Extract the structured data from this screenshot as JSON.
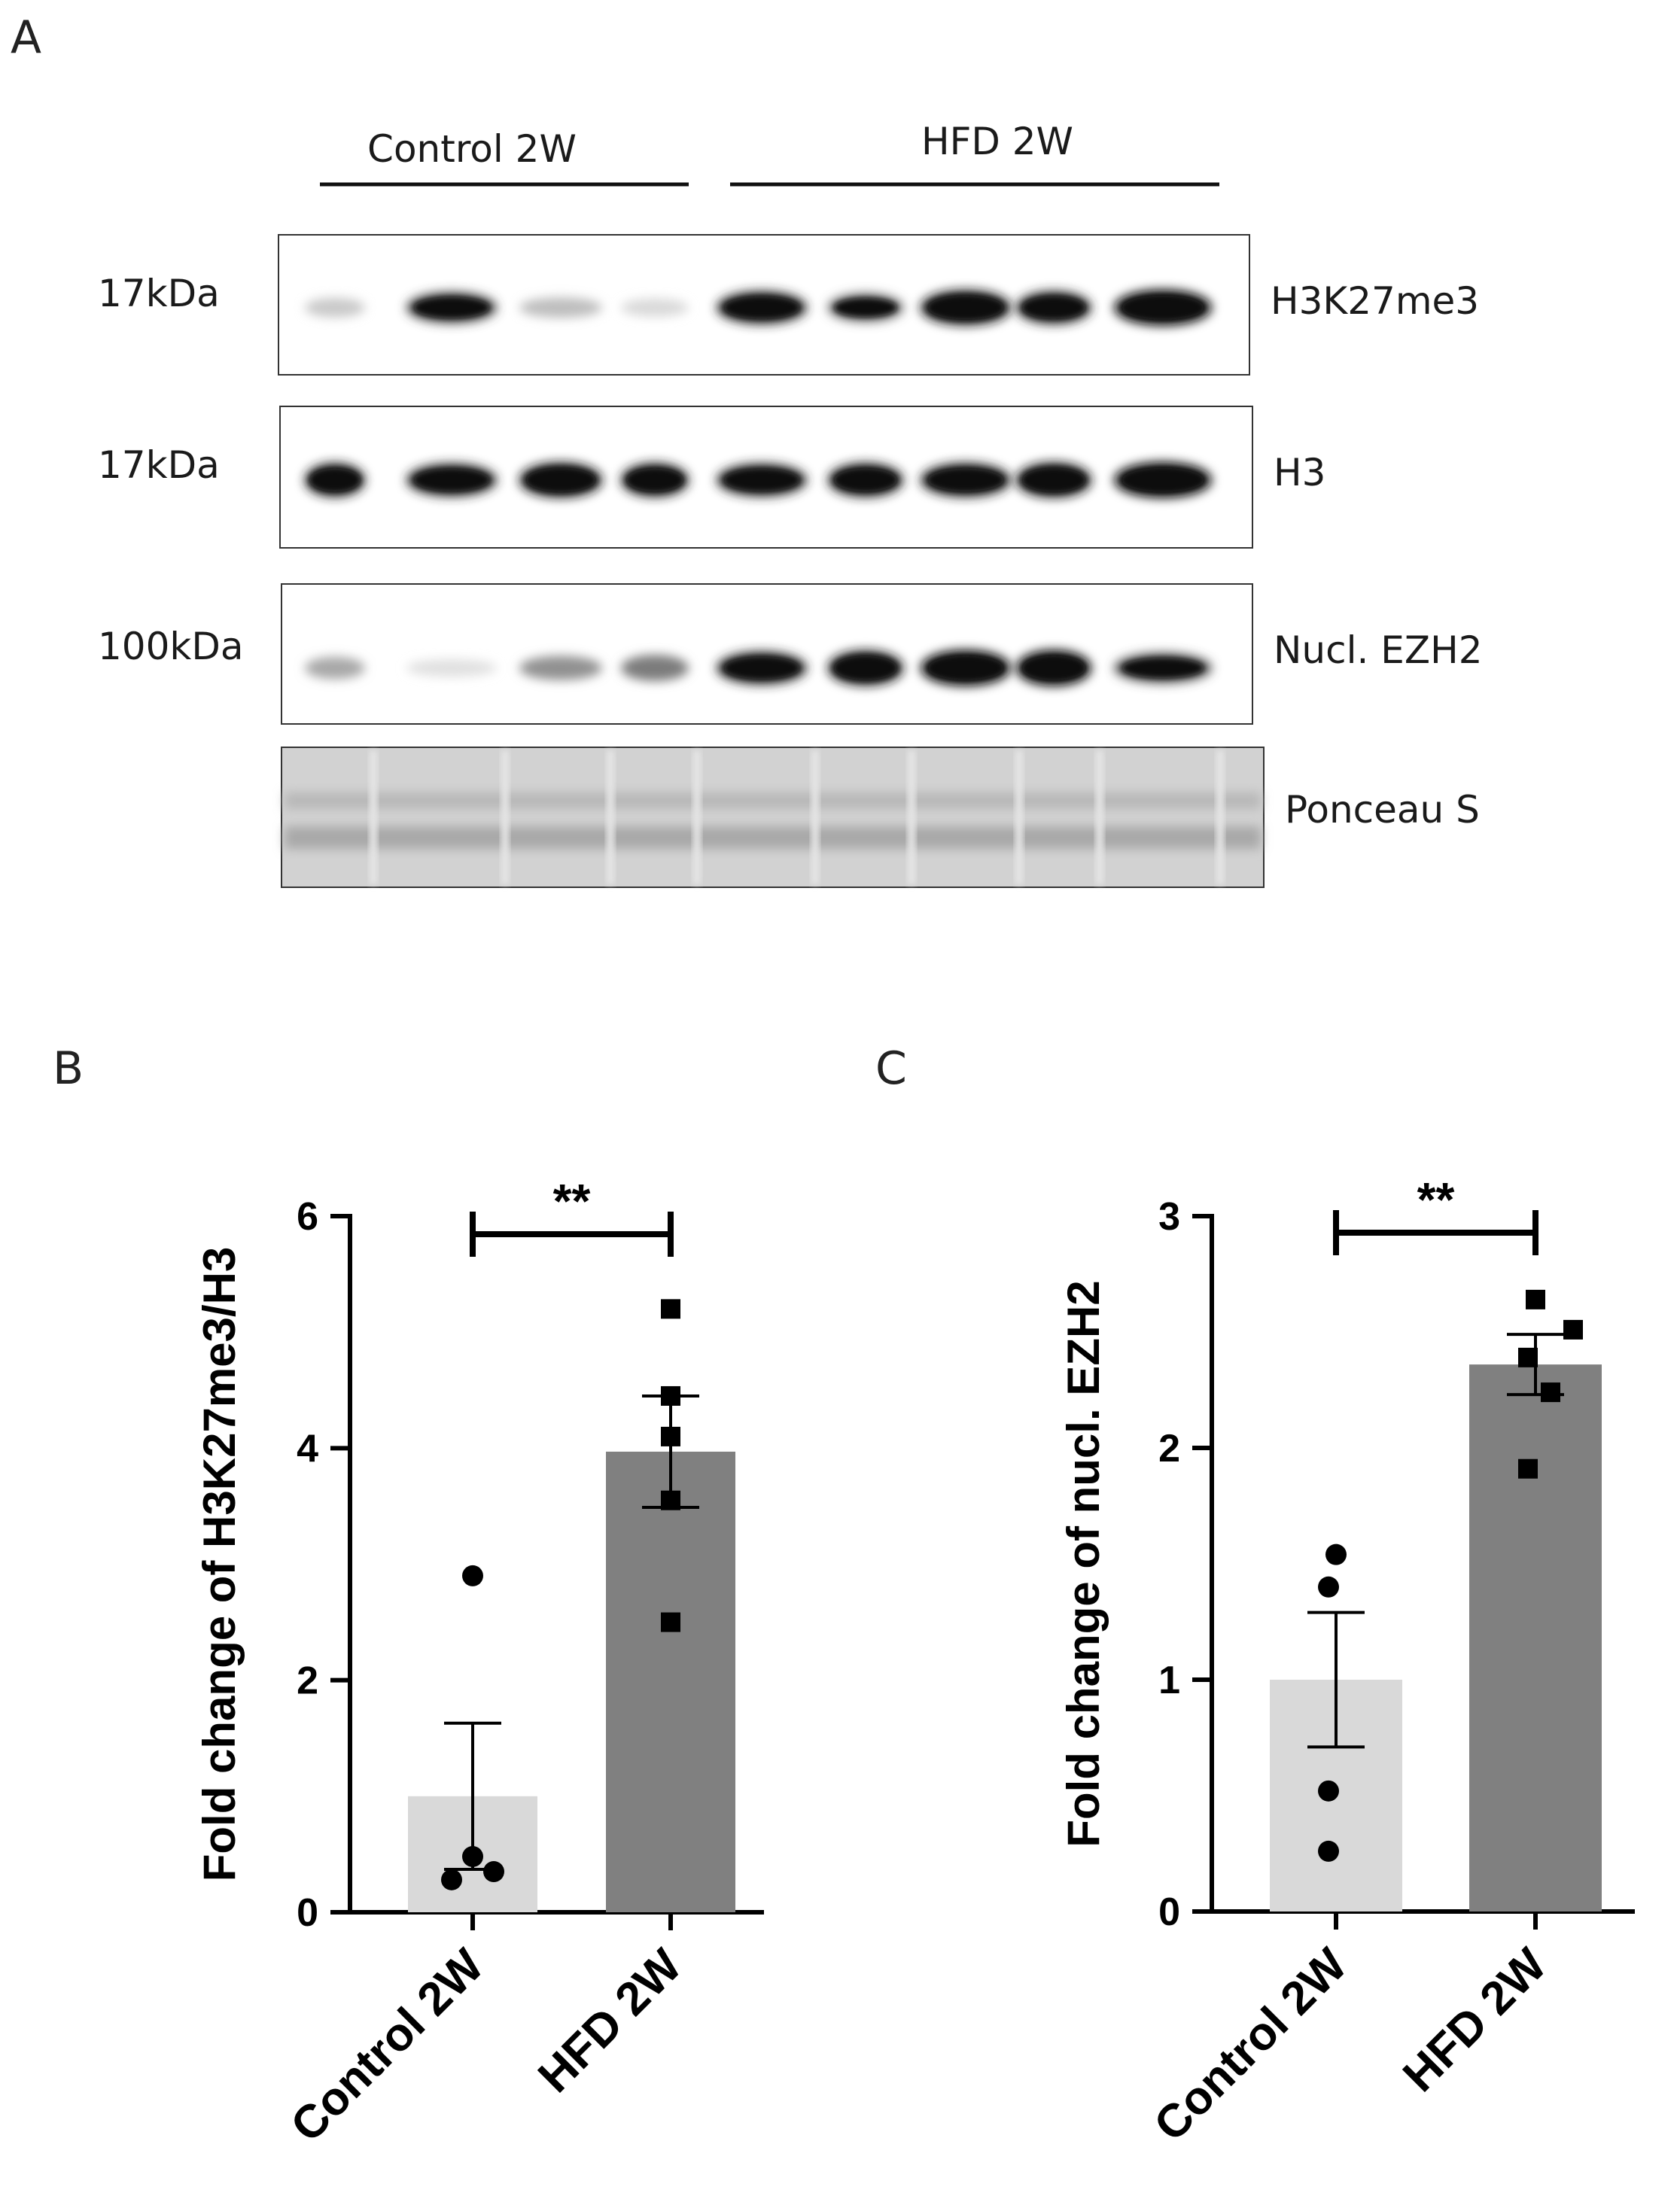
{
  "panel_labels": {
    "a": "A",
    "b": "B",
    "c": "C"
  },
  "blot": {
    "groups": [
      "Control 2W",
      "HFD 2W"
    ],
    "lanes_per_group": [
      4,
      5
    ],
    "rows": [
      {
        "marker": "17kDa",
        "label": "H3K27me3",
        "intensities": [
          0.15,
          0.75,
          0.2,
          0.08,
          0.85,
          0.6,
          0.95,
          0.85,
          1.0
        ]
      },
      {
        "marker": "17kDa",
        "label": "H3",
        "intensities": [
          0.9,
          0.85,
          0.95,
          0.9,
          0.85,
          0.9,
          0.9,
          0.95,
          1.0
        ]
      },
      {
        "marker": "100kDa",
        "label": "Nucl. EZH2",
        "intensities": [
          0.3,
          0.05,
          0.4,
          0.5,
          0.85,
          0.95,
          1.0,
          1.0,
          0.7
        ]
      },
      {
        "marker": "",
        "label": "Ponceau S",
        "intensities": [
          0.5,
          0.5,
          0.5,
          0.5,
          0.5,
          0.5,
          0.5,
          0.5,
          0.5
        ]
      }
    ]
  },
  "chart_data": [
    {
      "type": "bar",
      "panel": "B",
      "categories": [
        "Control 2W",
        "HFD 2W"
      ],
      "values": [
        1.0,
        3.97
      ],
      "sem": [
        0.63,
        0.48
      ],
      "points": [
        [
          2.9,
          0.48,
          0.35,
          0.28
        ],
        [
          5.2,
          4.45,
          4.1,
          3.55,
          2.5
        ]
      ],
      "ylabel": "Fold change of H3K27me3/H3",
      "ylim": [
        0,
        6
      ],
      "yticks": [
        "0",
        "2",
        "4",
        "6"
      ],
      "significance": "**",
      "colors": [
        "#d9d9d9",
        "#808080"
      ]
    },
    {
      "type": "bar",
      "panel": "C",
      "categories": [
        "Control 2W",
        "HFD 2W"
      ],
      "values": [
        1.0,
        2.36
      ],
      "sem": [
        0.29,
        0.13
      ],
      "points": [
        [
          1.54,
          1.4,
          0.52,
          0.26
        ],
        [
          2.64,
          2.51,
          2.39,
          2.24,
          1.91
        ]
      ],
      "ylabel": "Fold change of nucl. EZH2",
      "ylim": [
        0,
        3
      ],
      "yticks": [
        "0",
        "1",
        "2",
        "3"
      ],
      "significance": "**",
      "colors": [
        "#d9d9d9",
        "#808080"
      ]
    }
  ]
}
